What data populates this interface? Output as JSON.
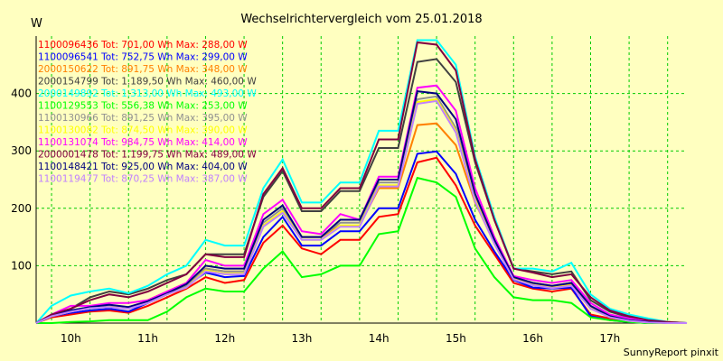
{
  "chart_data": {
    "type": "line",
    "title": "Wechselrichtervergleich vom 25.01.2018",
    "ylabel": "W",
    "footer": "SunnyReport pinxit",
    "ylim": [
      0,
      500
    ],
    "xlim": [
      9.3,
      17.75
    ],
    "y_ticks": [
      100,
      200,
      300,
      400
    ],
    "x_ticks": [
      {
        "label": "10h",
        "pos": 9.75
      },
      {
        "label": "11h",
        "pos": 10.75
      },
      {
        "label": "12h",
        "pos": 11.75
      },
      {
        "label": "13h",
        "pos": 12.75
      },
      {
        "label": "14h",
        "pos": 13.75
      },
      {
        "label": "15h",
        "pos": 14.75
      },
      {
        "label": "16h",
        "pos": 15.75
      },
      {
        "label": "17h",
        "pos": 16.75
      }
    ],
    "grid_x": [
      9.5,
      10.0,
      10.5,
      11.0,
      11.5,
      12.0,
      12.5,
      13.0,
      13.5,
      14.0,
      14.5,
      15.0,
      15.5,
      16.0,
      16.5,
      17.0,
      17.5
    ],
    "x": [
      9.3,
      9.5,
      9.75,
      10.0,
      10.25,
      10.5,
      10.75,
      11.0,
      11.25,
      11.5,
      11.75,
      12.0,
      12.25,
      12.5,
      12.75,
      13.0,
      13.25,
      13.5,
      13.75,
      14.0,
      14.25,
      14.5,
      14.75,
      15.0,
      15.25,
      15.5,
      15.75,
      16.0,
      16.25,
      16.5,
      16.75,
      17.0,
      17.25,
      17.5,
      17.75
    ],
    "series": [
      {
        "name": "1100096436",
        "legend": "1100096436 Tot: 701,00 Wh Max: 288,00 W",
        "color": "#ff0000",
        "values": [
          0,
          10,
          15,
          20,
          22,
          18,
          30,
          45,
          60,
          80,
          70,
          75,
          140,
          170,
          130,
          120,
          145,
          145,
          185,
          190,
          280,
          288,
          240,
          170,
          120,
          70,
          60,
          55,
          60,
          15,
          8,
          3,
          0,
          0,
          0
        ]
      },
      {
        "name": "1100096541",
        "legend": "1100096541 Tot: 752,75 Wh Max: 299,00 W",
        "color": "#0000ff",
        "values": [
          0,
          12,
          18,
          22,
          25,
          20,
          35,
          50,
          65,
          88,
          80,
          82,
          150,
          185,
          135,
          135,
          160,
          160,
          200,
          200,
          295,
          299,
          260,
          180,
          125,
          75,
          62,
          60,
          62,
          12,
          5,
          2,
          0,
          0,
          0
        ]
      },
      {
        "name": "2000150622",
        "legend": "2000150622 Tot: 891,75 Wh Max: 348,00 W",
        "color": "#ff8000",
        "values": [
          0,
          12,
          20,
          28,
          30,
          25,
          40,
          55,
          70,
          95,
          90,
          90,
          170,
          195,
          150,
          150,
          170,
          170,
          235,
          235,
          345,
          348,
          310,
          210,
          140,
          80,
          70,
          65,
          68,
          25,
          12,
          5,
          2,
          0,
          0
        ]
      },
      {
        "name": "2000154799",
        "legend": "2000154799 Tot: 1.189,50 Wh Max: 460,00 W",
        "color": "#404040",
        "values": [
          0,
          15,
          25,
          45,
          55,
          50,
          60,
          75,
          85,
          120,
          120,
          120,
          220,
          265,
          195,
          195,
          230,
          230,
          305,
          305,
          455,
          460,
          420,
          280,
          180,
          95,
          90,
          85,
          90,
          40,
          20,
          10,
          5,
          2,
          0
        ]
      },
      {
        "name": "2000149892",
        "legend": "2000149892 Tot: 1.313,00 Wh Max: 493,00 W",
        "color": "#00ffff",
        "values": [
          0,
          30,
          48,
          55,
          60,
          52,
          65,
          85,
          100,
          145,
          135,
          135,
          235,
          285,
          210,
          210,
          245,
          245,
          335,
          335,
          493,
          493,
          450,
          290,
          185,
          95,
          95,
          90,
          105,
          50,
          25,
          15,
          8,
          2,
          0
        ]
      },
      {
        "name": "1100129553",
        "legend": "1100129553 Tot: 556,38 Wh Max: 253,00 W",
        "color": "#00ff00",
        "values": [
          0,
          0,
          2,
          3,
          5,
          5,
          5,
          20,
          45,
          60,
          55,
          55,
          95,
          125,
          80,
          85,
          100,
          100,
          155,
          160,
          253,
          245,
          220,
          130,
          80,
          45,
          40,
          40,
          35,
          10,
          5,
          2,
          0,
          0,
          0
        ]
      },
      {
        "name": "1100130966",
        "legend": "1100130966 Tot: 891,25 Wh Max: 395,00 W",
        "color": "#909090",
        "values": [
          0,
          12,
          22,
          28,
          30,
          28,
          38,
          52,
          65,
          95,
          90,
          90,
          175,
          200,
          150,
          150,
          175,
          175,
          245,
          245,
          390,
          395,
          340,
          220,
          145,
          80,
          70,
          65,
          70,
          28,
          12,
          5,
          2,
          0,
          0
        ]
      },
      {
        "name": "1100130082",
        "legend": "1100130082 Tot: 874,50 Wh Max: 390,00 W",
        "color": "#ffff00",
        "values": [
          0,
          12,
          20,
          26,
          28,
          26,
          36,
          50,
          62,
          92,
          86,
          86,
          170,
          195,
          145,
          145,
          170,
          170,
          240,
          240,
          385,
          390,
          335,
          215,
          140,
          78,
          68,
          62,
          66,
          26,
          10,
          4,
          1,
          0,
          0
        ]
      },
      {
        "name": "1100131074",
        "legend": "1100131074 Tot: 984,75 Wh Max: 414,00 W",
        "color": "#ff00ff",
        "values": [
          0,
          15,
          30,
          30,
          35,
          35,
          40,
          55,
          70,
          110,
          100,
          100,
          190,
          215,
          160,
          155,
          190,
          180,
          255,
          255,
          410,
          414,
          370,
          235,
          150,
          82,
          75,
          70,
          75,
          35,
          15,
          8,
          3,
          0,
          0
        ]
      },
      {
        "name": "2000001478",
        "legend": "2000001478 Tot: 1.199,75 Wh Max: 489,00 W",
        "color": "#800040",
        "values": [
          0,
          15,
          25,
          40,
          50,
          45,
          55,
          70,
          85,
          120,
          115,
          115,
          225,
          270,
          200,
          200,
          235,
          235,
          320,
          320,
          489,
          485,
          440,
          285,
          180,
          95,
          88,
          80,
          85,
          45,
          22,
          12,
          5,
          2,
          0
        ]
      },
      {
        "name": "1100148421",
        "legend": "1100148421 Tot: 925,00 Wh Max: 404,00 W",
        "color": "#000080",
        "values": [
          0,
          12,
          22,
          28,
          32,
          28,
          38,
          52,
          68,
          100,
          95,
          95,
          180,
          205,
          150,
          150,
          180,
          180,
          250,
          250,
          404,
          400,
          355,
          225,
          145,
          80,
          70,
          65,
          70,
          30,
          12,
          5,
          2,
          0,
          0
        ]
      },
      {
        "name": "1100119477",
        "legend": "1100119477 Tot: 870,25 Wh Max: 387,00 W",
        "color": "#c080ff",
        "values": [
          0,
          12,
          20,
          26,
          28,
          25,
          35,
          50,
          62,
          90,
          85,
          85,
          168,
          192,
          145,
          145,
          168,
          168,
          238,
          238,
          382,
          387,
          332,
          212,
          138,
          76,
          66,
          61,
          65,
          25,
          10,
          4,
          1,
          0,
          0
        ]
      }
    ]
  }
}
